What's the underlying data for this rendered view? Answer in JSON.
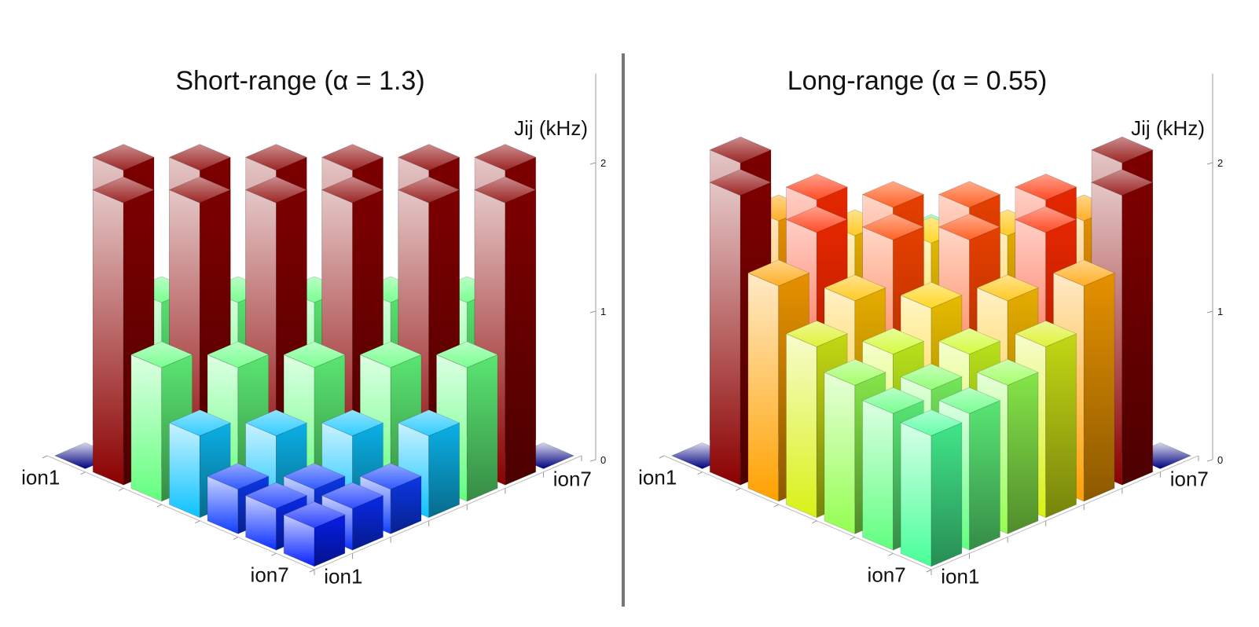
{
  "chart_data": [
    {
      "type": "bar3d",
      "title": "Short-range (α = 1.3)",
      "zlabel": "Jij (kHz)",
      "rows": [
        "ion1",
        null,
        null,
        null,
        null,
        null,
        "ion7"
      ],
      "cols": [
        "ion1",
        null,
        null,
        null,
        null,
        null,
        "ion7"
      ],
      "values": [
        [
          0,
          1.9,
          0.9,
          0.55,
          0.3,
          0.28,
          0.26
        ],
        [
          1.9,
          0,
          1.9,
          0.9,
          0.55,
          0.3,
          0.28
        ],
        [
          0.9,
          1.9,
          0,
          1.9,
          0.9,
          0.55,
          0.3
        ],
        [
          0.55,
          0.9,
          1.9,
          0,
          1.9,
          0.9,
          0.55
        ],
        [
          0.3,
          0.55,
          0.9,
          1.9,
          0,
          1.9,
          0.9
        ],
        [
          0.28,
          0.3,
          0.55,
          0.9,
          1.9,
          0,
          1.9
        ],
        [
          0.26,
          0.28,
          0.3,
          0.55,
          0.9,
          1.9,
          0
        ]
      ],
      "zlim": [
        0,
        2.6
      ],
      "zticks": [
        0,
        1,
        2
      ],
      "colormap": [
        "#000080",
        "#0000ff",
        "#1e90ff",
        "#00e5ff",
        "#40ffa0",
        "#c8ff20",
        "#ffd000",
        "#ff8c00",
        "#ff1a00",
        "#8b0000"
      ]
    },
    {
      "type": "bar3d",
      "title": "Long-range (α = 0.55)",
      "zlabel": "Jij (kHz)",
      "rows": [
        "ion1",
        null,
        null,
        null,
        null,
        null,
        "ion7"
      ],
      "cols": [
        "ion1",
        null,
        null,
        null,
        null,
        null,
        "ion7"
      ],
      "values": [
        [
          0,
          1.95,
          1.45,
          1.15,
          1.0,
          0.92,
          0.88
        ],
        [
          1.95,
          0,
          1.7,
          1.35,
          1.1,
          0.97,
          0.92
        ],
        [
          1.45,
          1.7,
          0,
          1.65,
          1.3,
          1.1,
          1.0
        ],
        [
          1.15,
          1.35,
          1.65,
          0,
          1.65,
          1.35,
          1.15
        ],
        [
          1.0,
          1.1,
          1.3,
          1.65,
          0,
          1.7,
          1.45
        ],
        [
          0.92,
          0.97,
          1.1,
          1.35,
          1.7,
          0,
          1.95
        ],
        [
          0.88,
          0.92,
          1.0,
          1.15,
          1.45,
          1.95,
          0
        ]
      ],
      "zlim": [
        0,
        2.6
      ],
      "zticks": [
        0,
        1,
        2
      ],
      "colormap": [
        "#000080",
        "#0000ff",
        "#1e90ff",
        "#00e5ff",
        "#40ffa0",
        "#c8ff20",
        "#ffd000",
        "#ff8c00",
        "#ff1a00",
        "#8b0000"
      ]
    }
  ]
}
